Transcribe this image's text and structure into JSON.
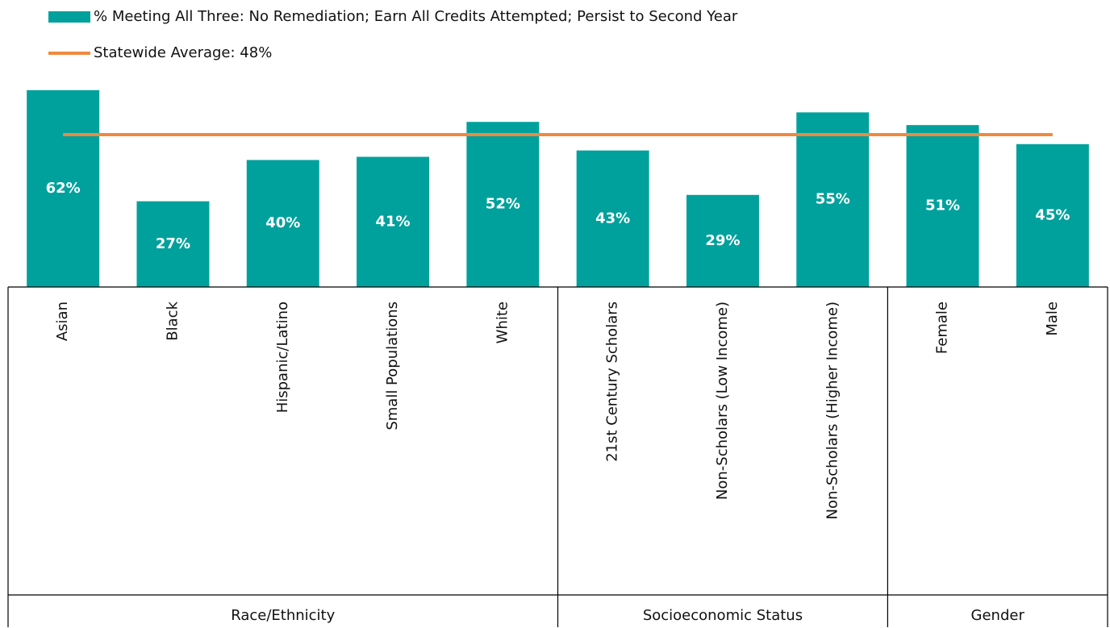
{
  "chart_data": {
    "type": "bar",
    "groups": [
      {
        "name": "Race/Ethnicity",
        "categories": [
          "Asian",
          "Black",
          "Hispanic/Latino",
          "Small Populations",
          "White"
        ]
      },
      {
        "name": "Socioeconomic Status",
        "categories": [
          "21st Century Scholars",
          "Non-Scholars (Low Income)",
          "Non-Scholars (Higher Income)"
        ]
      },
      {
        "name": "Gender",
        "categories": [
          "Female",
          "Male"
        ]
      }
    ],
    "series": [
      {
        "name": "% Meeting All Three: No Remediation; Earn All Credits Attempted; Persist to Second Year",
        "type": "bar",
        "color": "#00a19c",
        "values": [
          62,
          27,
          40,
          41,
          52,
          43,
          29,
          55,
          51,
          45
        ],
        "value_labels": [
          "62%",
          "27%",
          "40%",
          "41%",
          "52%",
          "43%",
          "29%",
          "55%",
          "51%",
          "45%"
        ]
      },
      {
        "name": "Statewide Average: 48%",
        "type": "line",
        "color": "#ef8a3e",
        "values": [
          48,
          48,
          48,
          48,
          48,
          48,
          48,
          48,
          48,
          48
        ]
      }
    ],
    "ylim": [
      0,
      65
    ]
  }
}
